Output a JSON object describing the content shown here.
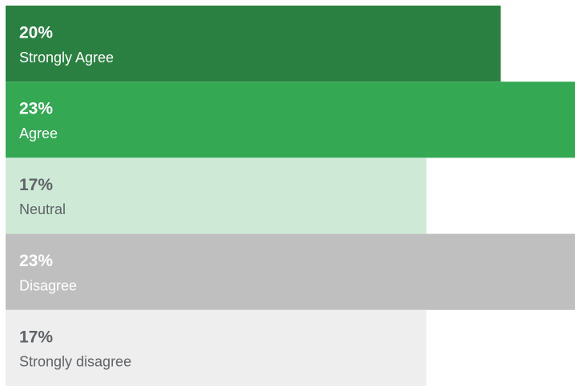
{
  "chart_data": {
    "type": "bar",
    "orientation": "horizontal",
    "categories": [
      "Strongly Agree",
      "Agree",
      "Neutral",
      "Disagree",
      "Strongly disagree"
    ],
    "values": [
      20,
      23,
      17,
      23,
      17
    ],
    "value_labels": [
      "20%",
      "23%",
      "17%",
      "23%",
      "17%"
    ],
    "colors": [
      "#2a8040",
      "#34a853",
      "#ceead6",
      "#bfbfbf",
      "#eeeeee"
    ],
    "text_colors": [
      "#ffffff",
      "#ffffff",
      "#5f6368",
      "#ffffff",
      "#5f6368"
    ],
    "xlim": [
      0,
      23
    ]
  }
}
